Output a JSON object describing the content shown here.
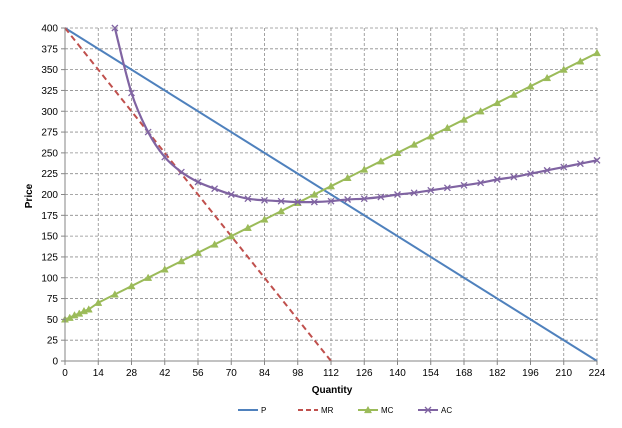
{
  "chart_data": {
    "type": "line",
    "title": "",
    "xlabel": "Quantity",
    "ylabel": "Price",
    "xlim": [
      0,
      224
    ],
    "ylim": [
      0,
      400
    ],
    "x_ticks": [
      0,
      14,
      28,
      42,
      56,
      70,
      84,
      98,
      112,
      126,
      140,
      154,
      168,
      182,
      196,
      210,
      224
    ],
    "y_ticks": [
      0,
      25,
      50,
      75,
      100,
      125,
      150,
      175,
      200,
      225,
      250,
      275,
      300,
      325,
      350,
      375,
      400
    ],
    "grid": "dashed",
    "legend_position": "bottom",
    "series": [
      {
        "name": "P",
        "color": "#4f81bd",
        "style": "solid",
        "marker": "none",
        "x": [
          0,
          224
        ],
        "y": [
          400,
          0
        ]
      },
      {
        "name": "MR",
        "color": "#c0504d",
        "style": "dashed",
        "marker": "none",
        "x": [
          0,
          112
        ],
        "y": [
          400,
          0
        ]
      },
      {
        "name": "MC",
        "color": "#9bbb59",
        "style": "solid",
        "marker": "triangle",
        "x": [
          0,
          2,
          4,
          6,
          8,
          10,
          14,
          21,
          28,
          35,
          42,
          49,
          56,
          63,
          70,
          77,
          84,
          91,
          98,
          105,
          112,
          119,
          126,
          133,
          140,
          147,
          154,
          161,
          168,
          175,
          182,
          189,
          196,
          203,
          210,
          217,
          224
        ],
        "y": [
          50,
          52,
          55,
          57,
          60,
          62,
          70,
          80,
          90,
          100,
          110,
          120,
          130,
          140,
          150,
          160,
          170,
          180,
          190,
          200,
          210,
          220,
          230,
          240,
          250,
          260,
          270,
          280,
          290,
          300,
          310,
          320,
          330,
          340,
          350,
          360,
          370
        ]
      },
      {
        "name": "AC",
        "color": "#8064a2",
        "style": "solid",
        "marker": "x",
        "x": [
          21,
          28,
          35,
          42,
          49,
          56,
          63,
          70,
          77,
          84,
          91,
          98,
          105,
          112,
          119,
          126,
          133,
          140,
          147,
          154,
          161,
          168,
          175,
          182,
          189,
          196,
          203,
          210,
          217,
          224
        ],
        "y": [
          400,
          322,
          275,
          245,
          227,
          215,
          207,
          200,
          195,
          193,
          192,
          191,
          191,
          192,
          194,
          195,
          197,
          200,
          202,
          205,
          208,
          211,
          214,
          218,
          221,
          225,
          229,
          233,
          237,
          241
        ]
      }
    ]
  }
}
